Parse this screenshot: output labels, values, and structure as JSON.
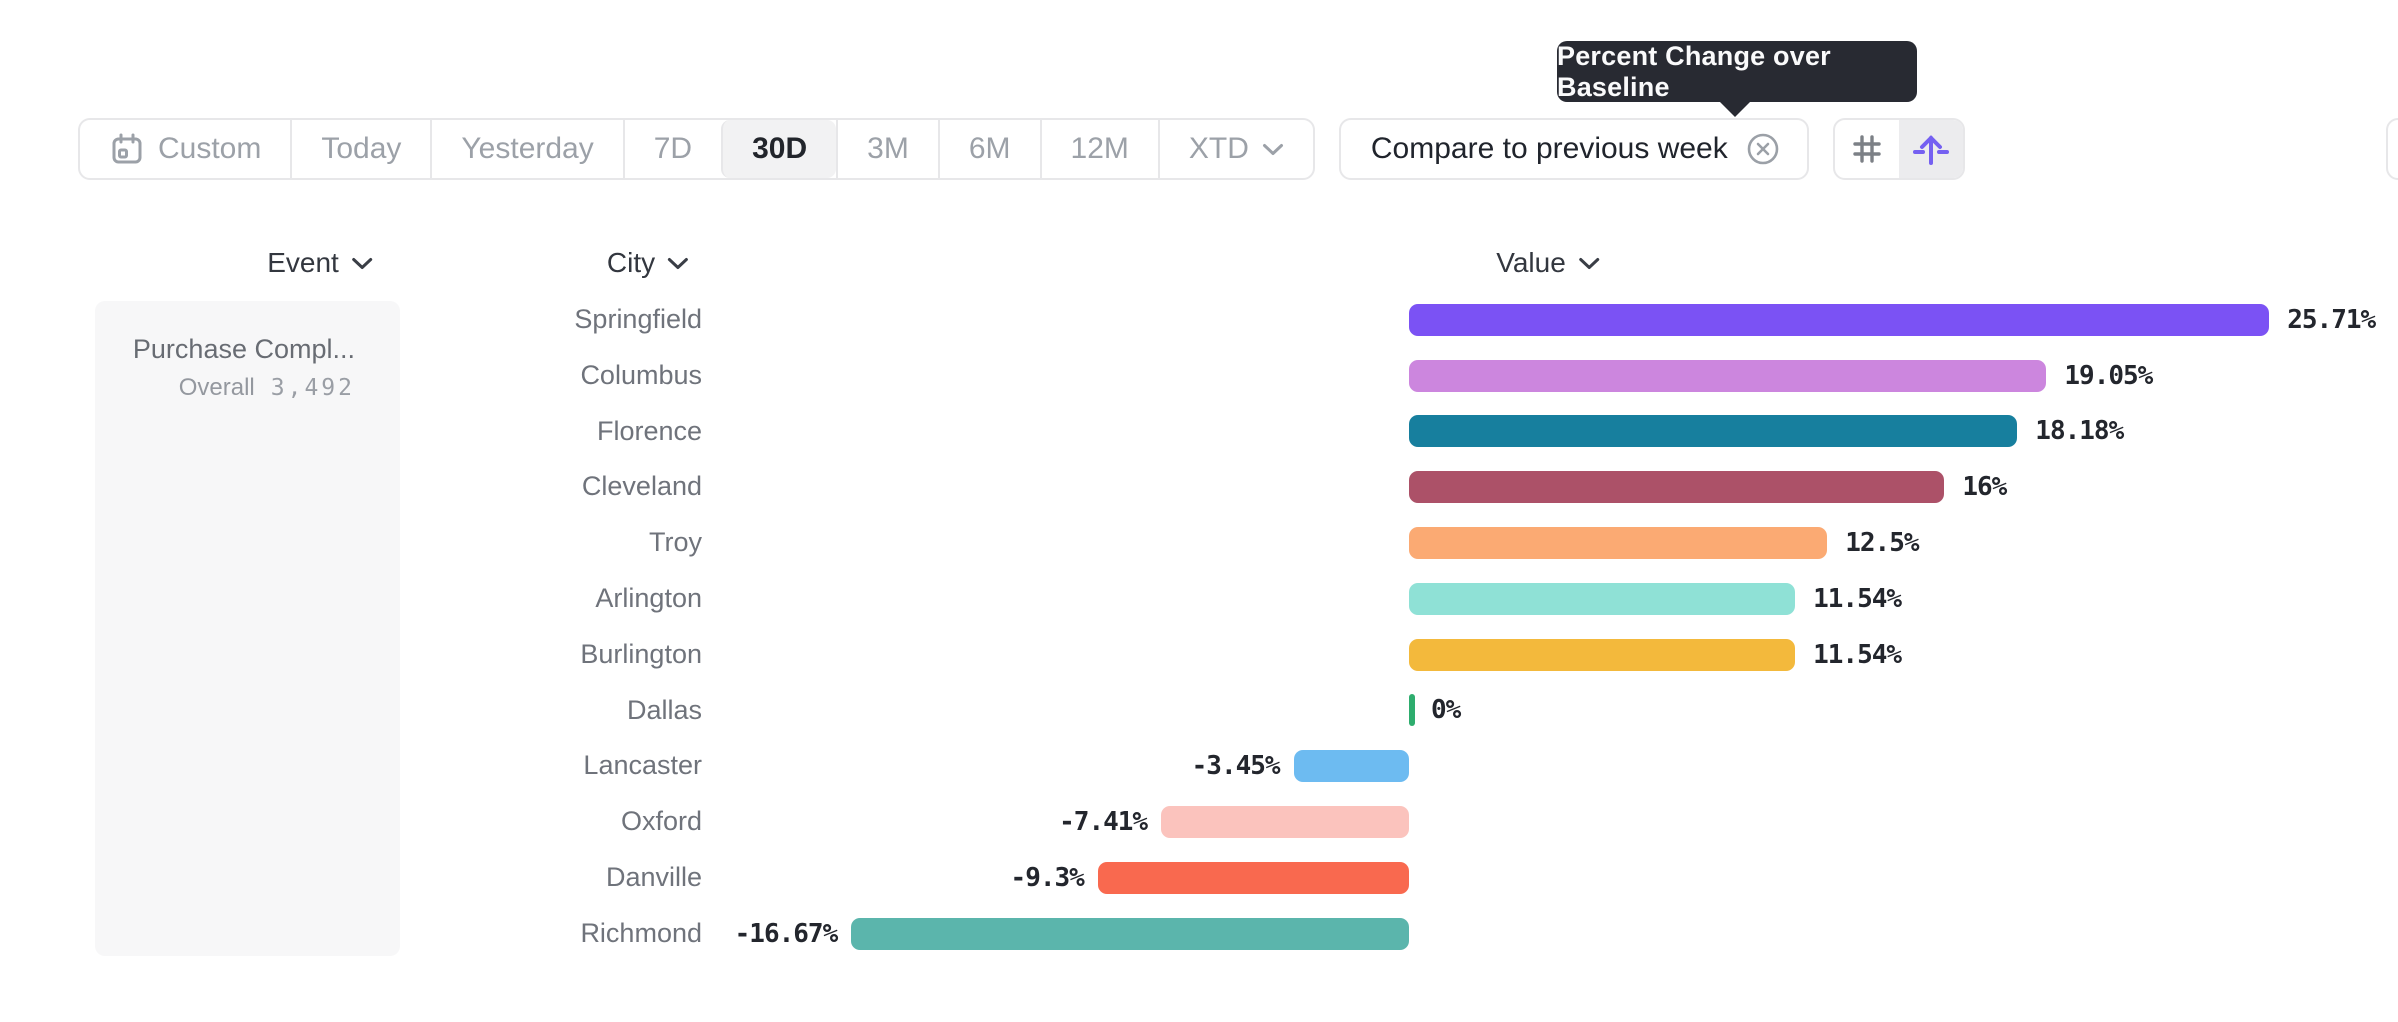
{
  "tooltip": {
    "text": "Percent Change over Baseline"
  },
  "toolbar": {
    "ranges": [
      {
        "label": "Custom",
        "icon": "calendar",
        "selected": false
      },
      {
        "label": "Today",
        "selected": false
      },
      {
        "label": "Yesterday",
        "selected": false
      },
      {
        "label": "7D",
        "selected": false
      },
      {
        "label": "30D",
        "selected": true
      },
      {
        "label": "3M",
        "selected": false
      },
      {
        "label": "6M",
        "selected": false
      },
      {
        "label": "12M",
        "selected": false
      },
      {
        "label": "XTD",
        "selected": false,
        "has_chevron": true
      }
    ],
    "compare": {
      "label": "Compare to previous week"
    },
    "view_toggle": [
      {
        "name": "grid-view",
        "selected": false
      },
      {
        "name": "percent-change-over-baseline",
        "selected": true
      }
    ]
  },
  "columns": {
    "event": "Event",
    "city": "City",
    "value": "Value"
  },
  "event_card": {
    "title": "Purchase Compl...",
    "overall_label": "Overall",
    "overall_value": "3,492"
  },
  "chart_data": {
    "type": "bar",
    "orientation": "horizontal",
    "title": "Percent Change over Baseline",
    "unit": "percent",
    "baseline": 0,
    "xlim": [
      -16.67,
      25.71
    ],
    "grid": false,
    "legend": false,
    "categories": [
      "Springfield",
      "Columbus",
      "Florence",
      "Cleveland",
      "Troy",
      "Arlington",
      "Burlington",
      "Dallas",
      "Lancaster",
      "Oxford",
      "Danville",
      "Richmond"
    ],
    "values": [
      25.71,
      19.05,
      18.18,
      16,
      12.5,
      11.54,
      11.54,
      0,
      -3.45,
      -7.41,
      -9.3,
      -16.67
    ],
    "labels": [
      "25.71%",
      "19.05%",
      "18.18%",
      "16%",
      "12.5%",
      "11.54%",
      "11.54%",
      "0%",
      "-3.45%",
      "-7.41%",
      "-9.3%",
      "-16.67%"
    ],
    "colors": [
      "#7B52F4",
      "#CC86DE",
      "#177F9E",
      "#AC5168",
      "#FBAA73",
      "#8FE1D6",
      "#F3B93C",
      "#2EAD6E",
      "#6DBBF1",
      "#FBC3BD",
      "#F9694F",
      "#5BB5AC"
    ]
  },
  "ui_colors": {
    "accent": "#7560F1",
    "tooltip_bg": "#282A32",
    "border": "#E7E7E9",
    "selected_bg": "#F2F2F3",
    "icon_gray": "#7C8086",
    "muted_gray": "#9BA0A7"
  }
}
